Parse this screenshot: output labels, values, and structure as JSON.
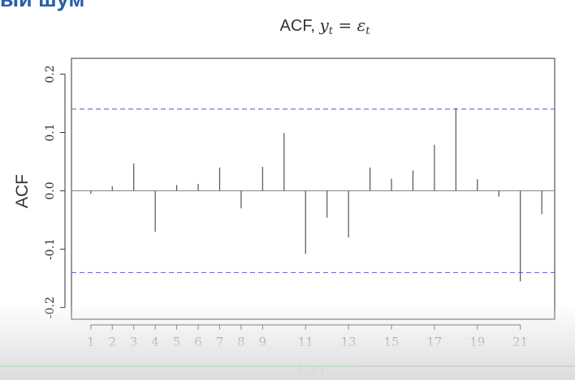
{
  "slide": {
    "heading_fragment": "ый шум"
  },
  "video": {
    "progress_fraction": 0.62
  },
  "chart_data": {
    "type": "bar",
    "title_prefix": "ACF, ",
    "title_math_lhs": "y",
    "title_math_lhs_sub": "t",
    "title_math_eq": " = ",
    "title_math_rhs": "ε",
    "title_math_rhs_sub": "t",
    "xlabel": "Lag",
    "ylabel": "ACF",
    "lags": [
      1,
      2,
      3,
      4,
      5,
      6,
      7,
      8,
      9,
      10,
      11,
      12,
      13,
      14,
      15,
      16,
      17,
      18,
      19,
      20,
      21,
      22
    ],
    "values": [
      -0.005,
      0.008,
      0.047,
      -0.07,
      0.01,
      0.012,
      0.04,
      -0.03,
      0.041,
      0.099,
      -0.108,
      -0.046,
      -0.08,
      0.04,
      0.021,
      0.035,
      0.079,
      0.142,
      0.02,
      -0.01,
      -0.155,
      -0.04
    ],
    "x_ticks": [
      1,
      2,
      3,
      4,
      5,
      6,
      7,
      8,
      9,
      11,
      13,
      15,
      17,
      19,
      21
    ],
    "y_ticks": [
      -0.2,
      -0.1,
      0.0,
      0.1,
      0.2
    ],
    "y_tick_labels": [
      "-0.2",
      "-0.1",
      "0.0",
      "0.1",
      "0.2"
    ],
    "xlim": [
      0.1,
      22.6
    ],
    "ylim": [
      -0.22,
      0.227
    ],
    "confidence_bound": 0.14,
    "colors": {
      "bars": "#555555",
      "confidence": "#5a5ad6",
      "axis": "#333333",
      "zero_line": "#888888"
    }
  }
}
